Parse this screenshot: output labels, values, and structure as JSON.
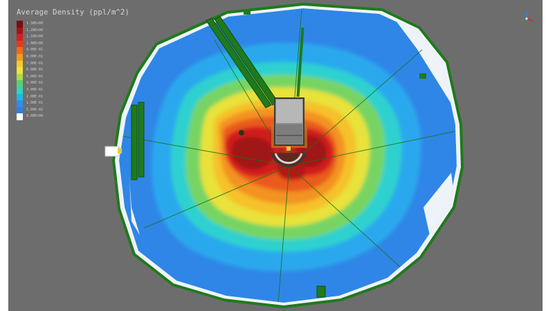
{
  "viewport": {
    "title": "Average Density (ppl/m^2)",
    "background": "#6d6d6d"
  },
  "legend": {
    "tick_labels": [
      "1.30E+00",
      "1.20E+00",
      "1.10E+00",
      "1.00E+00",
      "9.00E-01",
      "8.00E-01",
      "7.00E-01",
      "6.00E-01",
      "5.00E-01",
      "4.00E-01",
      "3.00E-01",
      "2.00E-01",
      "1.00E-01",
      "5.00E-02",
      "0.00E+00"
    ],
    "colors": [
      "#7a0d0d",
      "#a81313",
      "#d12020",
      "#e63a1a",
      "#f06a18",
      "#f59a1c",
      "#f7c92a",
      "#e9e636",
      "#a9dc45",
      "#5ccf6e",
      "#2fd3c0",
      "#1fb6e8",
      "#2d8fea",
      "#2f7fe0",
      "#ffffff"
    ]
  },
  "scene": {
    "colors": {
      "floor_low": "#2f86e6",
      "edge_white": "#f2f6fb",
      "wall_green": "#1f7a1c",
      "wall_dark": "#124d10",
      "kiosk_gray": "#9c9c9c",
      "red_core": "#c9151a"
    }
  },
  "icons": {
    "axis": "xyz-axis-triad-icon"
  }
}
